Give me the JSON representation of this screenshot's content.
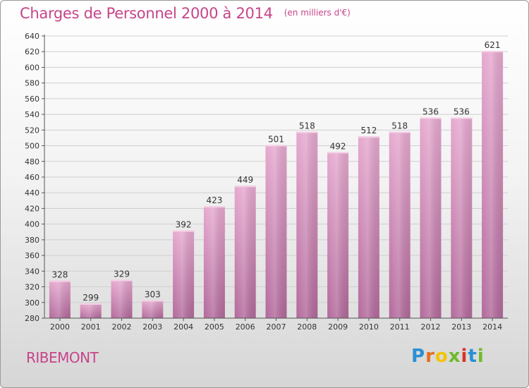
{
  "chart_data": {
    "type": "bar",
    "title": "Charges de Personnel 2000 à 2014",
    "unit": "(en milliers d'€)",
    "categories": [
      "2000",
      "2001",
      "2002",
      "2003",
      "2004",
      "2005",
      "2006",
      "2007",
      "2008",
      "2009",
      "2010",
      "2011",
      "2012",
      "2013",
      "2014"
    ],
    "values": [
      328,
      299,
      329,
      303,
      392,
      423,
      449,
      501,
      518,
      492,
      512,
      518,
      536,
      536,
      621
    ],
    "xlabel": "",
    "ylabel": "",
    "ylim": [
      280,
      640
    ],
    "yticks": [
      280,
      300,
      320,
      340,
      360,
      380,
      400,
      420,
      440,
      460,
      480,
      500,
      520,
      540,
      560,
      580,
      600,
      620,
      640
    ],
    "grid": true,
    "bar_color": "#d98fbd",
    "text_color": "#c7448a"
  },
  "commune": "RIBEMONT",
  "brand": {
    "letters": [
      "P",
      "r",
      "o",
      "x",
      "i",
      "t",
      "i"
    ],
    "colors": [
      "#2a8fd6",
      "#e2711d",
      "#f2c400",
      "#6fba2c",
      "#d8332a",
      "#2a8fd6",
      "#6fba2c"
    ]
  }
}
